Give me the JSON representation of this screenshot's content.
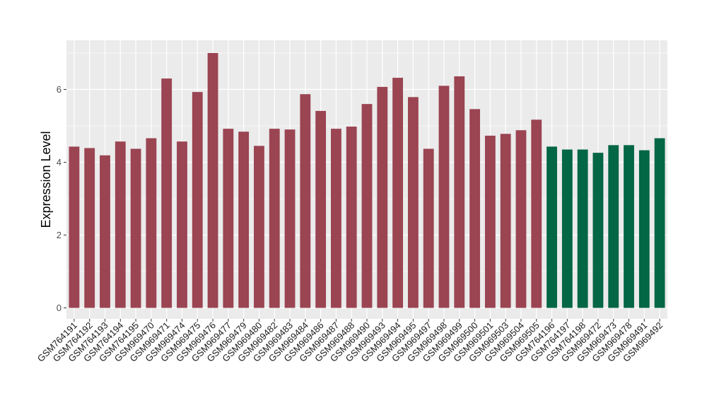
{
  "chart_data": {
    "type": "bar",
    "title": "",
    "xlabel": "",
    "ylabel": "Expression Level",
    "ylim": [
      -0.3,
      7.35
    ],
    "yticks": [
      0,
      2,
      4,
      6
    ],
    "grid": true,
    "legend": "none",
    "colors": {
      "group_a": "#9b4452",
      "group_b": "#036644",
      "panel_bg": "#ebebeb",
      "grid": "#ffffff"
    },
    "categories": [
      "GSM764191",
      "GSM764192",
      "GSM764193",
      "GSM764194",
      "GSM764195",
      "GSM969470",
      "GSM969471",
      "GSM969474",
      "GSM969475",
      "GSM969476",
      "GSM969477",
      "GSM969479",
      "GSM969480",
      "GSM969482",
      "GSM969483",
      "GSM969484",
      "GSM969486",
      "GSM969487",
      "GSM969488",
      "GSM969490",
      "GSM969493",
      "GSM969494",
      "GSM969495",
      "GSM969497",
      "GSM969498",
      "GSM969499",
      "GSM969500",
      "GSM969501",
      "GSM969503",
      "GSM969504",
      "GSM969505",
      "GSM764196",
      "GSM764197",
      "GSM764198",
      "GSM969472",
      "GSM969473",
      "GSM969478",
      "GSM969491",
      "GSM969492"
    ],
    "values": [
      4.43,
      4.39,
      4.19,
      4.57,
      4.37,
      4.66,
      6.3,
      4.57,
      5.93,
      7.0,
      4.92,
      4.84,
      4.45,
      4.92,
      4.9,
      5.87,
      5.41,
      4.92,
      4.98,
      5.6,
      6.07,
      6.32,
      5.79,
      4.37,
      6.1,
      6.36,
      5.46,
      4.73,
      4.78,
      4.88,
      5.17,
      4.43,
      4.35,
      4.35,
      4.26,
      4.47,
      4.47,
      4.33,
      4.66
    ],
    "groups": [
      "a",
      "a",
      "a",
      "a",
      "a",
      "a",
      "a",
      "a",
      "a",
      "a",
      "a",
      "a",
      "a",
      "a",
      "a",
      "a",
      "a",
      "a",
      "a",
      "a",
      "a",
      "a",
      "a",
      "a",
      "a",
      "a",
      "a",
      "a",
      "a",
      "a",
      "a",
      "b",
      "b",
      "b",
      "b",
      "b",
      "b",
      "b",
      "b"
    ]
  }
}
